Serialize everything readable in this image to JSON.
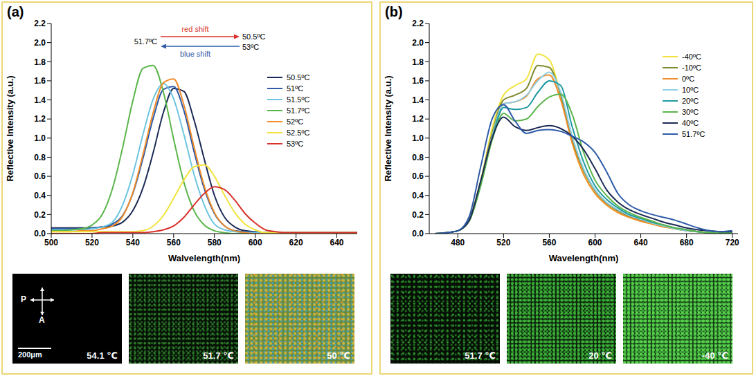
{
  "chart_data": [
    {
      "type": "line",
      "panel_label": "(a)",
      "x_label": "Walvelength(nm)",
      "y_label": "Reflective Intensity (a.u.)",
      "xlim": [
        500,
        650
      ],
      "xticks": [
        500,
        520,
        540,
        560,
        580,
        600,
        620,
        640
      ],
      "ylim": [
        0,
        2.2
      ],
      "yticks": [
        {
          "value": 0,
          "label": "0.0"
        },
        0.2,
        0.4,
        0.6,
        0.8,
        {
          "value": 1,
          "label": "1.0"
        },
        1.2,
        1.4,
        1.6,
        1.8,
        {
          "value": 2,
          "label": "2.0"
        },
        2.2
      ],
      "grid": false,
      "legend": "right",
      "x": [
        500,
        505,
        510,
        515,
        520,
        525,
        530,
        535,
        540,
        545,
        550,
        555,
        560,
        565,
        570,
        575,
        580,
        585,
        590,
        595,
        600,
        605,
        610,
        615,
        620,
        625,
        630,
        635,
        640,
        645,
        650
      ],
      "series": [
        {
          "name": "50.5ºC",
          "color": "#1b2a55",
          "values": [
            0.06,
            0.06,
            0.06,
            0.06,
            0.06,
            0.07,
            0.08,
            0.12,
            0.24,
            0.48,
            0.85,
            1.27,
            1.52,
            1.49,
            1.19,
            0.78,
            0.4,
            0.17,
            0.07,
            0.03,
            0.02,
            0.01,
            0.01,
            0.01,
            0.01,
            0.01,
            0.01,
            0.01,
            0.01,
            0.01,
            0.01
          ]
        },
        {
          "name": "51ºC",
          "color": "#2e5aa8",
          "values": [
            0.05,
            0.05,
            0.05,
            0.05,
            0.06,
            0.07,
            0.1,
            0.19,
            0.42,
            0.79,
            1.21,
            1.51,
            1.54,
            1.29,
            0.86,
            0.47,
            0.21,
            0.08,
            0.03,
            0.02,
            0.01,
            0.01,
            0.01,
            0.01,
            0.01,
            0.01,
            0.01,
            0.01,
            0.01,
            0.01,
            0.01
          ]
        },
        {
          "name": "51.5ºC",
          "color": "#6cc4e0",
          "values": [
            0.04,
            0.04,
            0.04,
            0.04,
            0.05,
            0.07,
            0.12,
            0.3,
            0.62,
            1.04,
            1.41,
            1.57,
            1.41,
            1.04,
            0.62,
            0.3,
            0.1,
            0.04,
            0.02,
            0.01,
            0.01,
            0.01,
            0.01,
            0.01,
            0.01,
            0.01,
            0.01,
            0.01,
            0.01,
            0.01,
            0.01
          ]
        },
        {
          "name": "51.7ºC",
          "color": "#5ab54a",
          "values": [
            0.03,
            0.03,
            0.04,
            0.05,
            0.09,
            0.2,
            0.47,
            0.9,
            1.39,
            1.73,
            1.76,
            1.48,
            0.99,
            0.54,
            0.24,
            0.09,
            0.03,
            0.01,
            0,
            0,
            0,
            0,
            0,
            0,
            0,
            0,
            0,
            0,
            0,
            0,
            0
          ]
        },
        {
          "name": "52ºC",
          "color": "#f08c2a",
          "values": [
            0.02,
            0.02,
            0.02,
            0.03,
            0.03,
            0.05,
            0.08,
            0.18,
            0.43,
            0.83,
            1.27,
            1.58,
            1.62,
            1.35,
            0.91,
            0.5,
            0.22,
            0.08,
            0.03,
            0.01,
            0,
            0,
            0,
            0,
            0,
            0,
            0,
            0,
            0,
            0,
            0
          ]
        },
        {
          "name": "52.5ºC",
          "color": "#f2e33c",
          "values": [
            0.02,
            0.02,
            0.02,
            0.02,
            0.02,
            0.02,
            0.02,
            0.02,
            0.02,
            0.03,
            0.08,
            0.19,
            0.37,
            0.56,
            0.7,
            0.72,
            0.6,
            0.4,
            0.22,
            0.1,
            0.04,
            0.01,
            0.01,
            0.01,
            0.01,
            0.01,
            0.01,
            0.01,
            0.01,
            0.01,
            0.01
          ]
        },
        {
          "name": "53ºC",
          "color": "#d9312b",
          "values": [
            0,
            0,
            0,
            0,
            0,
            0.01,
            0.01,
            0.01,
            0.01,
            0.01,
            0.02,
            0.04,
            0.08,
            0.17,
            0.3,
            0.42,
            0.49,
            0.46,
            0.35,
            0.21,
            0.11,
            0.04,
            0.02,
            0.01,
            0.01,
            0.01,
            0.01,
            0.01,
            0.01,
            0.01,
            0.01
          ]
        }
      ],
      "annotations": {
        "upper": "red shift",
        "lower": "blue shift",
        "left": "51.7ºC",
        "upper_right": "50.5ºC",
        "lower_right": "53ºC"
      },
      "micrographs": [
        "54.1 ℃",
        "51.7 ℃",
        "50 ℃"
      ],
      "polarizer_labels": [
        "P",
        "A"
      ],
      "scale_bar": "200μm"
    },
    {
      "type": "line",
      "panel_label": "(b)",
      "x_label": "Wavelength(nm)",
      "y_label": "Reflective Intensity (a.u.)",
      "xlim": [
        455,
        725
      ],
      "xticks": [
        480,
        520,
        560,
        600,
        640,
        680,
        720
      ],
      "ylim": [
        0,
        2.2
      ],
      "yticks": [
        {
          "value": 0,
          "label": "0.0"
        },
        0.2,
        0.4,
        0.6,
        0.8,
        {
          "value": 1,
          "label": "1.0"
        },
        1.2,
        1.4,
        1.6,
        1.8,
        {
          "value": 2,
          "label": "2.0"
        },
        2.2
      ],
      "grid": false,
      "legend": "upper right",
      "x": [
        460,
        470,
        480,
        490,
        500,
        510,
        520,
        530,
        540,
        550,
        560,
        570,
        580,
        590,
        600,
        610,
        620,
        630,
        640,
        650,
        660,
        670,
        680,
        690,
        700,
        710,
        720
      ],
      "series": [
        {
          "name": "-40ºC",
          "color": "#f2e33c",
          "values": [
            0,
            0.01,
            0.03,
            0.15,
            0.55,
            1.1,
            1.45,
            1.55,
            1.62,
            1.88,
            1.82,
            1.45,
            0.95,
            0.62,
            0.42,
            0.3,
            0.22,
            0.17,
            0.13,
            0.1,
            0.07,
            0.05,
            0.03,
            0.02,
            0.01,
            0.01,
            0.01
          ]
        },
        {
          "name": "-10ºC",
          "color": "#7f8a2e",
          "values": [
            0,
            0.01,
            0.03,
            0.15,
            0.55,
            1.05,
            1.4,
            1.45,
            1.52,
            1.76,
            1.74,
            1.45,
            0.98,
            0.66,
            0.45,
            0.32,
            0.24,
            0.18,
            0.14,
            0.11,
            0.08,
            0.05,
            0.03,
            0.02,
            0.01,
            0.01,
            0.01
          ]
        },
        {
          "name": "0ºC",
          "color": "#f08c2a",
          "values": [
            0,
            0.01,
            0.03,
            0.14,
            0.52,
            1.02,
            1.36,
            1.38,
            1.44,
            1.62,
            1.66,
            1.4,
            0.95,
            0.62,
            0.42,
            0.3,
            0.22,
            0.17,
            0.13,
            0.1,
            0.07,
            0.05,
            0.03,
            0.02,
            0.01,
            0.01,
            0.01
          ]
        },
        {
          "name": "10ºC",
          "color": "#8fd0e8",
          "values": [
            0,
            0.01,
            0.03,
            0.14,
            0.52,
            1.02,
            1.36,
            1.38,
            1.45,
            1.6,
            1.69,
            1.48,
            1.02,
            0.68,
            0.46,
            0.33,
            0.25,
            0.19,
            0.15,
            0.11,
            0.08,
            0.05,
            0.03,
            0.02,
            0.01,
            0.01,
            0.01
          ]
        },
        {
          "name": "20ºC",
          "color": "#1f9aa0",
          "values": [
            0,
            0.01,
            0.03,
            0.14,
            0.52,
            1.0,
            1.32,
            1.3,
            1.32,
            1.48,
            1.6,
            1.55,
            1.12,
            0.75,
            0.5,
            0.36,
            0.27,
            0.2,
            0.16,
            0.12,
            0.09,
            0.06,
            0.04,
            0.02,
            0.01,
            0.01,
            0.01
          ]
        },
        {
          "name": "30ºC",
          "color": "#5ab54a",
          "values": [
            0,
            0.01,
            0.03,
            0.13,
            0.5,
            0.98,
            1.26,
            1.18,
            1.2,
            1.33,
            1.43,
            1.46,
            1.25,
            0.85,
            0.56,
            0.4,
            0.29,
            0.22,
            0.17,
            0.13,
            0.09,
            0.06,
            0.04,
            0.02,
            0.01,
            0.01,
            0.01
          ]
        },
        {
          "name": "40ºC",
          "color": "#1b2a55",
          "values": [
            0,
            0.01,
            0.03,
            0.14,
            0.55,
            1.0,
            1.22,
            1.12,
            1.08,
            1.11,
            1.13,
            1.1,
            1.02,
            0.88,
            0.68,
            0.46,
            0.33,
            0.25,
            0.2,
            0.16,
            0.12,
            0.09,
            0.06,
            0.04,
            0.03,
            0.02,
            0.02
          ]
        },
        {
          "name": "51.7ºC",
          "color": "#2e5aa8",
          "values": [
            0,
            0.01,
            0.03,
            0.18,
            0.7,
            1.2,
            1.35,
            1.18,
            1.05,
            1.08,
            1.09,
            1.07,
            1.02,
            0.96,
            0.85,
            0.65,
            0.42,
            0.3,
            0.24,
            0.2,
            0.17,
            0.14,
            0.1,
            0.06,
            0.03,
            0.02,
            0.03
          ]
        }
      ],
      "micrographs": [
        "51.7 ℃",
        "20 ℃",
        "-40 ℃"
      ]
    }
  ]
}
